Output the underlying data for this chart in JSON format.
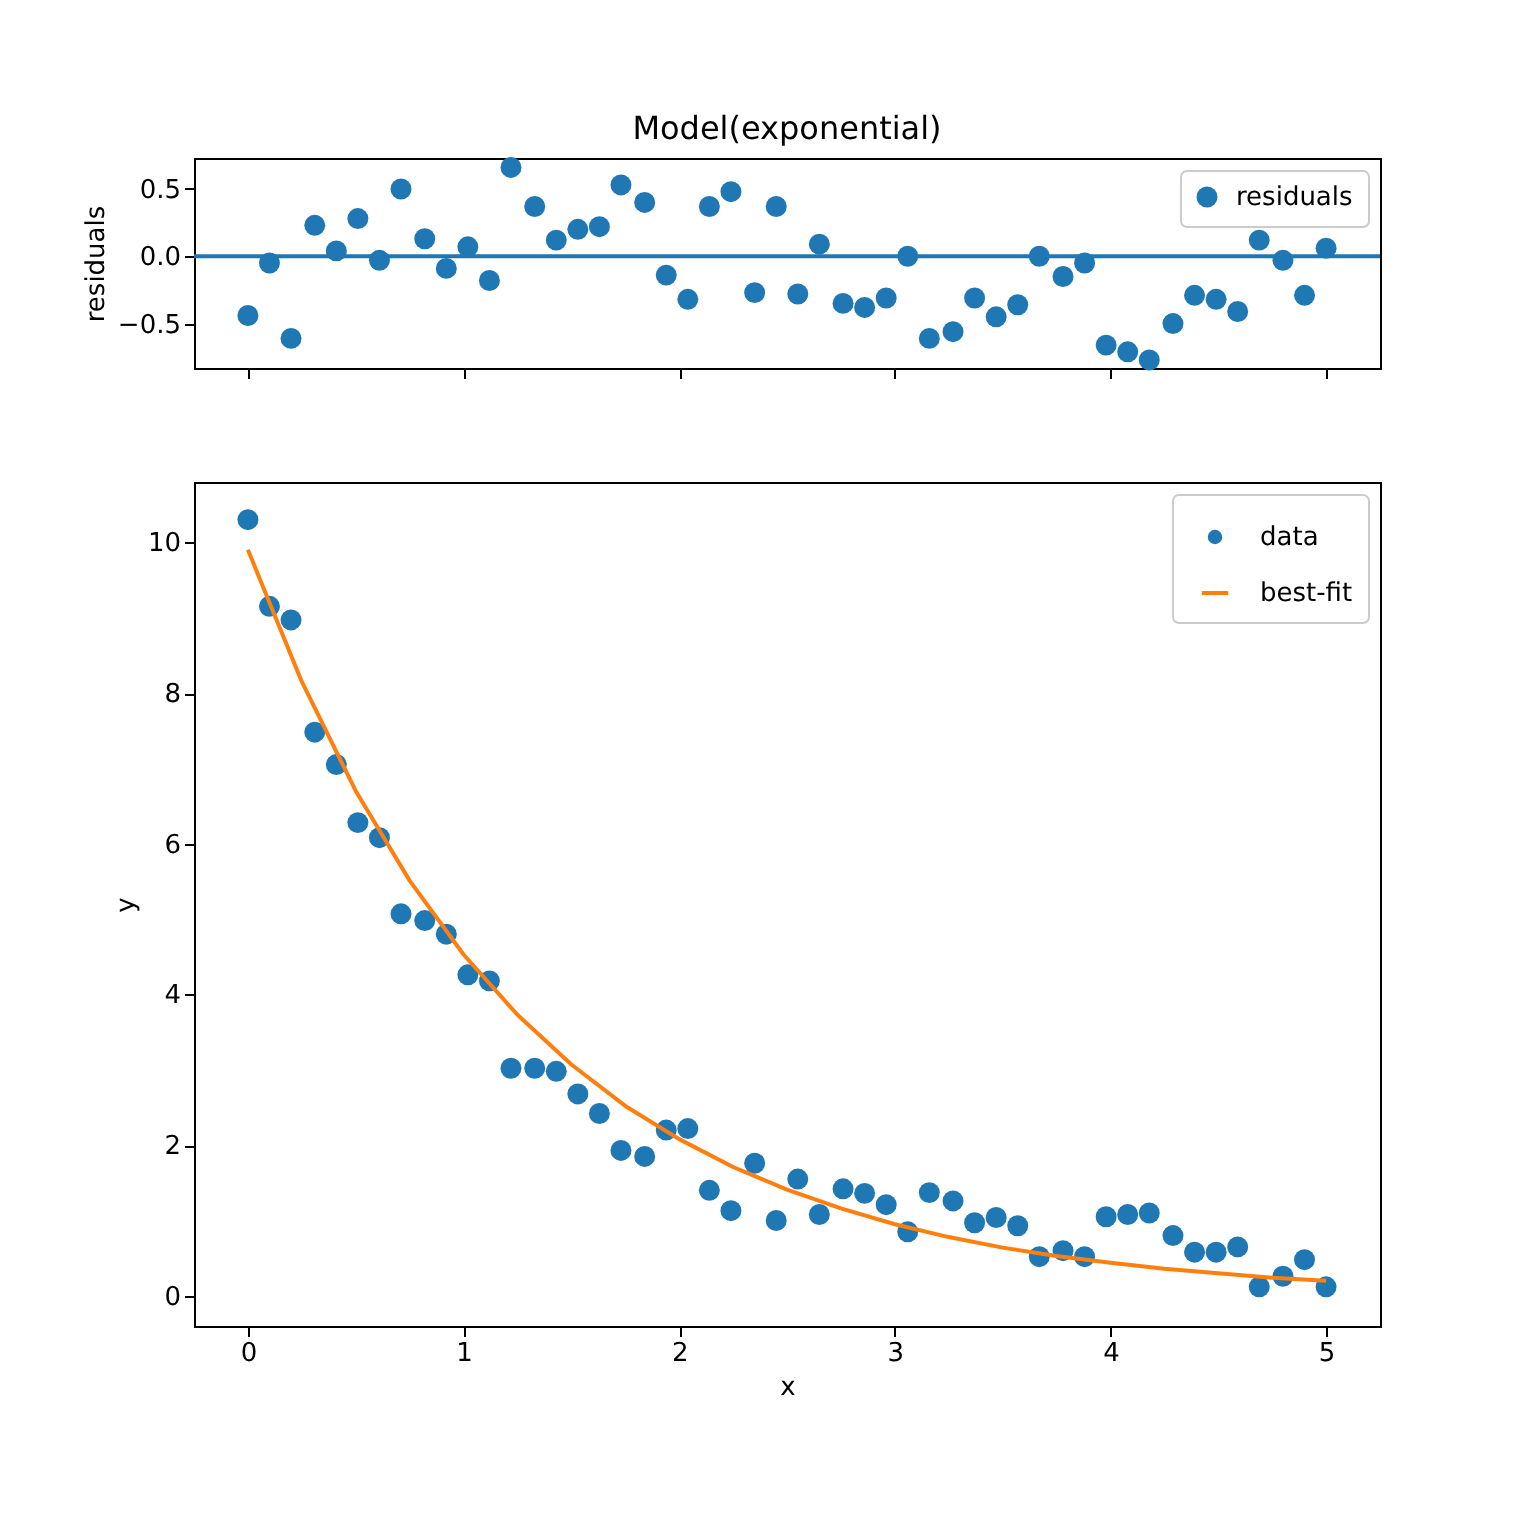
{
  "chart_data": [
    {
      "type": "scatter",
      "title": "Model(exponential)",
      "ylabel": "residuals",
      "marker": "circle",
      "legend": "top right",
      "tick_labels": "y",
      "x": [
        0,
        0.1,
        0.2,
        0.31,
        0.41,
        0.51,
        0.61,
        0.71,
        0.82,
        0.92,
        1.02,
        1.12,
        1.22,
        1.33,
        1.43,
        1.53,
        1.63,
        1.73,
        1.84,
        1.94,
        2.04,
        2.14,
        2.24,
        2.35,
        2.45,
        2.55,
        2.65,
        2.76,
        2.86,
        2.96,
        3.06,
        3.16,
        3.27,
        3.37,
        3.47,
        3.57,
        3.67,
        3.78,
        3.88,
        3.98,
        4.08,
        4.18,
        4.29,
        4.39,
        4.49,
        4.59,
        4.69,
        4.8,
        4.9,
        5.0
      ],
      "series": [
        {
          "name": "residuals",
          "color": "#1f77b4",
          "values": [
            -0.44,
            -0.05,
            -0.61,
            0.23,
            0.04,
            0.28,
            -0.03,
            0.5,
            0.13,
            -0.09,
            0.07,
            -0.18,
            0.66,
            0.37,
            0.12,
            0.2,
            0.22,
            0.53,
            0.4,
            -0.14,
            -0.32,
            0.37,
            0.48,
            -0.27,
            0.37,
            -0.28,
            0.09,
            -0.35,
            -0.38,
            -0.31,
            0.0,
            -0.61,
            -0.56,
            -0.31,
            -0.45,
            -0.36,
            0.0,
            -0.15,
            -0.05,
            -0.66,
            -0.71,
            -0.77,
            -0.5,
            -0.29,
            -0.32,
            -0.41,
            0.12,
            -0.03,
            -0.29,
            0.06
          ]
        }
      ],
      "ref_lines": [
        {
          "axis": "y",
          "value": 0,
          "color": "#1f77b4"
        }
      ],
      "xlim": [
        -0.25,
        5.25
      ],
      "xticks": [
        0,
        1,
        2,
        3,
        4,
        5
      ],
      "ylim": [
        -0.83,
        0.73
      ],
      "yticks": [
        {
          "value": -0.5,
          "label": "−0.5"
        },
        {
          "value": 0,
          "label": "0.0"
        },
        {
          "value": 0.5,
          "label": "0.5"
        }
      ]
    },
    {
      "type": "scatter",
      "xlabel": "x",
      "ylabel": "y",
      "legend": "top right",
      "x": [
        0,
        0.1,
        0.2,
        0.31,
        0.41,
        0.51,
        0.61,
        0.71,
        0.82,
        0.92,
        1.02,
        1.12,
        1.22,
        1.33,
        1.43,
        1.53,
        1.63,
        1.73,
        1.84,
        1.94,
        2.04,
        2.14,
        2.24,
        2.35,
        2.45,
        2.55,
        2.65,
        2.76,
        2.86,
        2.96,
        3.06,
        3.16,
        3.27,
        3.37,
        3.47,
        3.57,
        3.67,
        3.78,
        3.88,
        3.98,
        4.08,
        4.18,
        4.29,
        4.39,
        4.49,
        4.59,
        4.69,
        4.8,
        4.9,
        5.0
      ],
      "series": [
        {
          "name": "data",
          "color": "#1f77b4",
          "marker": "circle",
          "values": [
            10.3,
            9.15,
            8.97,
            7.48,
            7.05,
            6.28,
            6.08,
            5.07,
            4.98,
            4.8,
            4.26,
            4.18,
            3.02,
            3.02,
            2.98,
            2.68,
            2.42,
            1.93,
            1.85,
            2.2,
            2.22,
            1.4,
            1.13,
            1.76,
            1.0,
            1.55,
            1.08,
            1.42,
            1.36,
            1.21,
            0.85,
            1.37,
            1.26,
            0.97,
            1.04,
            0.93,
            0.52,
            0.6,
            0.52,
            1.05,
            1.08,
            1.1,
            0.8,
            0.58,
            0.58,
            0.65,
            0.12,
            0.26,
            0.48,
            0.12
          ]
        },
        {
          "name": "best-fit",
          "type": "line",
          "color": "#ff7f0e",
          "x": [
            0,
            0.25,
            0.5,
            0.75,
            1,
            1.25,
            1.5,
            1.75,
            2,
            2.25,
            2.5,
            2.75,
            3,
            3.25,
            3.5,
            3.75,
            4,
            4.25,
            4.5,
            4.75,
            5
          ],
          "values": [
            9.9,
            8.15,
            6.7,
            5.51,
            4.53,
            3.73,
            3.07,
            2.52,
            2.08,
            1.71,
            1.41,
            1.16,
            0.95,
            0.78,
            0.64,
            0.53,
            0.44,
            0.36,
            0.3,
            0.24,
            0.2
          ]
        }
      ],
      "xlim": [
        -0.25,
        5.25
      ],
      "xticks": [
        0,
        1,
        2,
        3,
        4,
        5
      ],
      "ylim": [
        -0.4,
        10.8
      ],
      "yticks": [
        0,
        2,
        4,
        6,
        8,
        10
      ]
    }
  ]
}
